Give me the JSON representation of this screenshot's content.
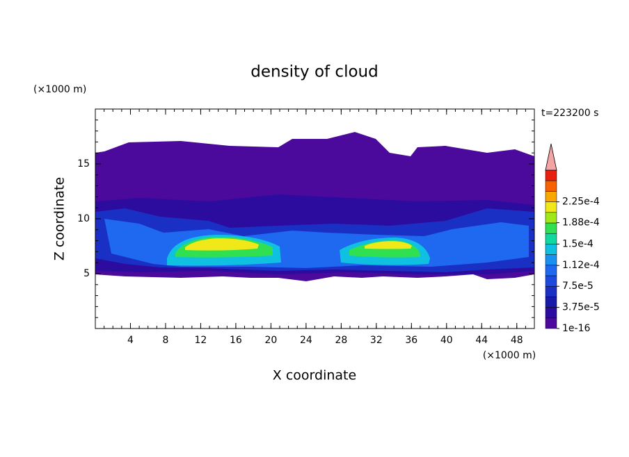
{
  "chart_data": {
    "type": "contour",
    "title": "density of cloud",
    "xlabel": "X coordinate",
    "ylabel": "Z coordinate",
    "xunit": "(×1000 m)",
    "yunit": "(×1000 m)",
    "annotation": "t=223200 s",
    "xlim": [
      0,
      50
    ],
    "xticks": [
      4,
      8,
      12,
      16,
      20,
      24,
      28,
      32,
      36,
      40,
      44,
      48
    ],
    "ylim": [
      0,
      20
    ],
    "yticks": [
      5,
      10,
      15
    ],
    "colorbar": {
      "levels": [
        1e-16,
        {
          "value": 3.75e-05,
          "label": "3.75e-5"
        },
        {
          "value": 7.5e-05,
          "label": "7.5e-5"
        },
        {
          "value": 0.000112,
          "label": "1.12e-4"
        },
        {
          "value": 0.00015,
          "label": "1.5e-4"
        },
        {
          "value": 0.000188,
          "label": "1.88e-4"
        },
        {
          "value": 0.000225,
          "label": "2.25e-4"
        }
      ],
      "colors": [
        "#4b0a9c",
        "#2c0c9e",
        "#1a1aa8",
        "#1a30c4",
        "#1c4ade",
        "#1f68f0",
        "#1a90f0",
        "#10c0e0",
        "#10d8a0",
        "#30e050",
        "#a0e818",
        "#f0e818",
        "#f8a800",
        "#f86000",
        "#e82010"
      ],
      "extend_color": "#f4a4a4"
    }
  }
}
